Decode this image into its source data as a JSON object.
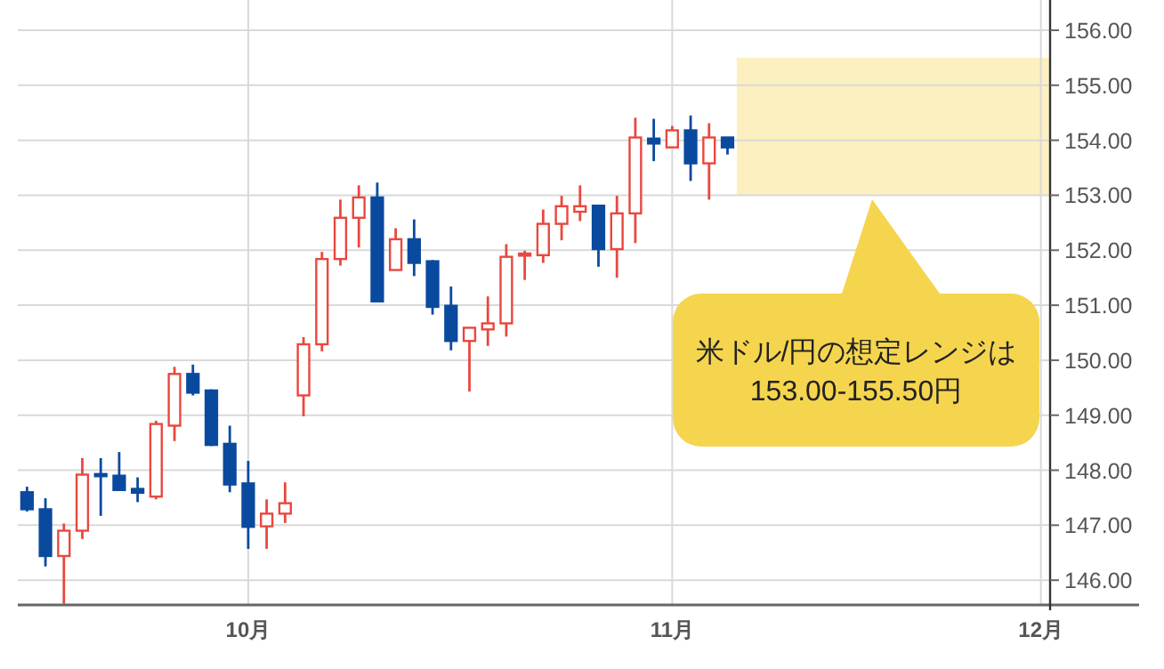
{
  "chart_data": {
    "type": "candlestick",
    "categories": [
      null,
      null,
      null,
      null,
      null,
      null,
      null,
      null,
      null,
      null,
      null,
      null,
      "10月",
      null,
      null,
      null,
      null,
      null,
      null,
      null,
      null,
      null,
      null,
      null,
      null,
      null,
      null,
      null,
      null,
      null,
      null,
      null,
      null,
      null,
      null,
      "11月",
      null,
      null,
      null,
      null,
      null,
      null,
      null,
      null,
      null,
      null,
      null,
      null,
      null,
      null,
      null,
      null,
      null,
      null,
      null,
      "12月"
    ],
    "ohlc": [
      [
        147.6,
        147.7,
        147.25,
        147.29
      ],
      [
        147.29,
        147.49,
        146.25,
        146.44
      ],
      [
        146.44,
        147.03,
        145.57,
        146.9
      ],
      [
        146.9,
        148.22,
        146.75,
        147.92
      ],
      [
        147.93,
        148.22,
        147.17,
        147.9
      ],
      [
        147.9,
        148.33,
        147.64,
        147.64
      ],
      [
        147.66,
        147.87,
        147.42,
        147.59
      ],
      [
        147.52,
        148.9,
        147.47,
        148.84
      ],
      [
        148.81,
        149.88,
        148.53,
        149.75
      ],
      [
        149.75,
        149.92,
        149.36,
        149.41
      ],
      [
        149.45,
        149.47,
        148.44,
        148.46
      ],
      [
        148.48,
        148.81,
        147.6,
        147.74
      ],
      [
        147.76,
        148.17,
        146.57,
        146.97
      ],
      [
        146.98,
        147.47,
        146.57,
        147.21
      ],
      [
        147.21,
        147.78,
        147.04,
        147.4
      ],
      [
        149.36,
        150.42,
        148.98,
        150.29
      ],
      [
        150.29,
        151.97,
        150.16,
        151.84
      ],
      [
        151.84,
        152.92,
        151.72,
        152.59
      ],
      [
        152.59,
        153.18,
        152.05,
        152.96
      ],
      [
        152.96,
        153.23,
        151.07,
        151.07
      ],
      [
        151.64,
        152.4,
        151.64,
        152.2
      ],
      [
        152.2,
        152.56,
        151.53,
        151.77
      ],
      [
        151.8,
        151.82,
        150.83,
        150.97
      ],
      [
        150.99,
        151.34,
        150.18,
        150.35
      ],
      [
        150.35,
        150.6,
        149.43,
        150.59
      ],
      [
        150.56,
        151.16,
        150.26,
        150.67
      ],
      [
        150.67,
        152.11,
        150.43,
        151.88
      ],
      [
        151.92,
        151.99,
        151.46,
        151.94
      ],
      [
        151.91,
        152.74,
        151.77,
        152.48
      ],
      [
        152.48,
        152.99,
        152.18,
        152.8
      ],
      [
        152.7,
        153.18,
        152.53,
        152.8
      ],
      [
        152.81,
        152.82,
        151.7,
        152.02
      ],
      [
        152.02,
        152.99,
        151.5,
        152.67
      ],
      [
        152.67,
        154.41,
        152.13,
        154.05
      ],
      [
        154.03,
        154.39,
        153.62,
        153.94
      ],
      [
        153.87,
        154.26,
        153.87,
        154.18
      ],
      [
        154.18,
        154.45,
        153.26,
        153.58
      ],
      [
        153.58,
        154.31,
        152.92,
        154.05
      ],
      [
        154.05,
        154.06,
        153.74,
        153.87
      ],
      null,
      null,
      null,
      null,
      null,
      null,
      null,
      null,
      null,
      null,
      null,
      null,
      null,
      null,
      null,
      null,
      null
    ],
    "colors": [
      "#0a4a9e",
      "#0a4a9e",
      "#e8483f",
      "#e8483f",
      "#0a4a9e",
      "#0a4a9e",
      "#0a4a9e",
      "#e8483f",
      "#e8483f",
      "#0a4a9e",
      "#0a4a9e",
      "#0a4a9e",
      "#0a4a9e",
      "#e8483f",
      "#e8483f",
      "#e8483f",
      "#e8483f",
      "#e8483f",
      "#e8483f",
      "#0a4a9e",
      "#e8483f",
      "#0a4a9e",
      "#0a4a9e",
      "#0a4a9e",
      "#e8483f",
      "#e8483f",
      "#e8483f",
      "#e8483f",
      "#e8483f",
      "#e8483f",
      "#e8483f",
      "#0a4a9e",
      "#e8483f",
      "#e8483f",
      "#0a4a9e",
      "#e8483f",
      "#0a4a9e",
      "#e8483f",
      "#0a4a9e",
      null,
      null,
      null,
      null,
      null,
      null,
      null,
      null,
      null,
      null,
      null,
      null,
      null,
      null,
      null,
      null,
      null
    ],
    "ylim": [
      145.55,
      156.55
    ],
    "yticks": [
      {
        "value": 146,
        "label": "146.00"
      },
      {
        "value": 147,
        "label": "147.00"
      },
      {
        "value": 148,
        "label": "148.00"
      },
      {
        "value": 149,
        "label": "149.00"
      },
      {
        "value": 150,
        "label": "150.00"
      },
      {
        "value": 151,
        "label": "151.00"
      },
      {
        "value": 152,
        "label": "152.00"
      },
      {
        "value": 153,
        "label": "153.00"
      },
      {
        "value": 154,
        "label": "154.00"
      },
      {
        "value": 155,
        "label": "155.00"
      },
      {
        "value": 156,
        "label": "156.00"
      }
    ],
    "grid": true,
    "bands": [
      {
        "axis": "y",
        "from": 153.0,
        "to": 155.5,
        "color": "#fcf0c0"
      }
    ],
    "annotations": [
      "米ドル/円の想定レンジは\n153.00-155.50円"
    ]
  }
}
